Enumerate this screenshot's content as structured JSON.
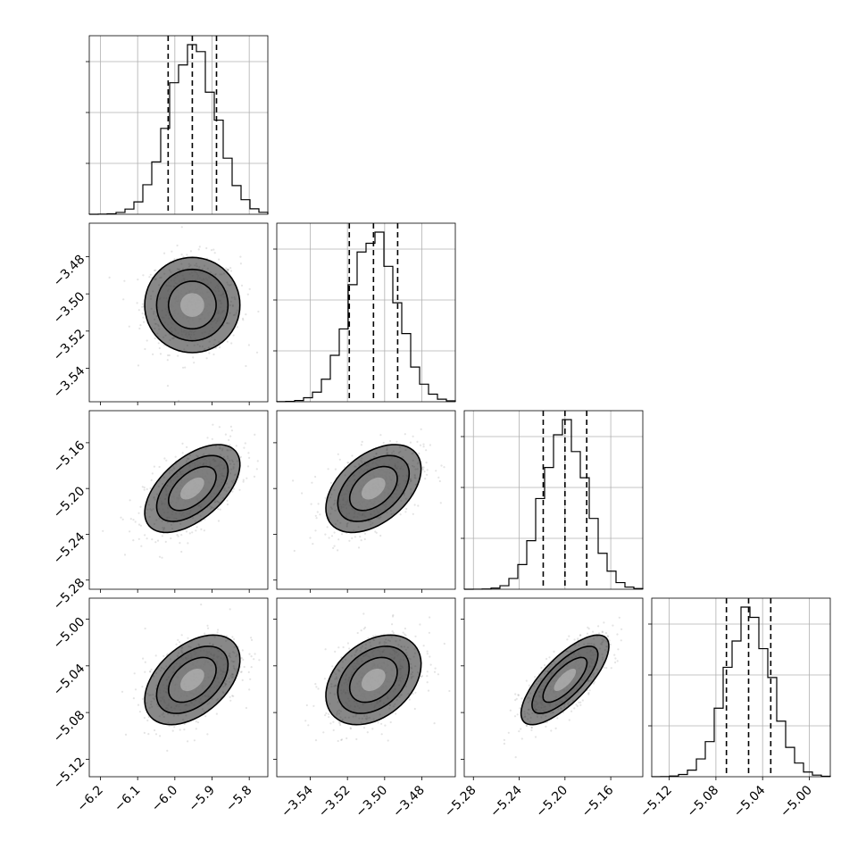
{
  "chart_data": {
    "type": "corner",
    "grid": true,
    "parameters": [
      {
        "range": [
          -6.23,
          -5.75
        ],
        "mean": -5.953,
        "sd": 0.064,
        "quantiles": [
          -6.018,
          -5.953,
          -5.888
        ],
        "ticks": [
          -6.2,
          -6.1,
          -6.0,
          -5.9,
          -5.8
        ],
        "tick_labels": [
          "−6.2",
          "−6.1",
          "−6.0",
          "−5.9",
          "−5.8"
        ]
      },
      {
        "range": [
          -3.558,
          -3.462
        ],
        "mean": -3.506,
        "sd": 0.0128,
        "quantiles": [
          -3.519,
          -3.506,
          -3.493
        ],
        "ticks": [
          -3.54,
          -3.52,
          -3.5,
          -3.48
        ],
        "tick_labels": [
          "−3.54",
          "−3.52",
          "−3.50",
          "−3.48"
        ]
      },
      {
        "range": [
          -5.288,
          -5.132
        ],
        "mean": -5.2,
        "sd": 0.0192,
        "quantiles": [
          -5.219,
          -5.2,
          -5.181
        ],
        "ticks": [
          -5.28,
          -5.24,
          -5.2,
          -5.16
        ],
        "tick_labels": [
          "−5.28",
          "−5.24",
          "−5.20",
          "−5.16"
        ]
      },
      {
        "range": [
          -5.135,
          -4.982
        ],
        "mean": -5.052,
        "sd": 0.0192,
        "quantiles": [
          -5.071,
          -5.052,
          -5.033
        ],
        "ticks": [
          -5.12,
          -5.08,
          -5.04,
          -5.0
        ],
        "tick_labels": [
          "−5.12",
          "−5.08",
          "−5.04",
          "−5.00"
        ]
      }
    ],
    "correlations": [
      {
        "pair": [
          0,
          1
        ],
        "rho": 0.0
      },
      {
        "pair": [
          0,
          2
        ],
        "rho": 0.55
      },
      {
        "pair": [
          1,
          2
        ],
        "rho": 0.45
      },
      {
        "pair": [
          0,
          3
        ],
        "rho": 0.45
      },
      {
        "pair": [
          1,
          3
        ],
        "rho": 0.35
      },
      {
        "pair": [
          2,
          3
        ],
        "rho": 0.75
      }
    ],
    "contour_levels_sigma": [
      0.5,
      1.0,
      1.5,
      2.0
    ],
    "scatter_color": "#555555",
    "line_color": "#000000"
  }
}
